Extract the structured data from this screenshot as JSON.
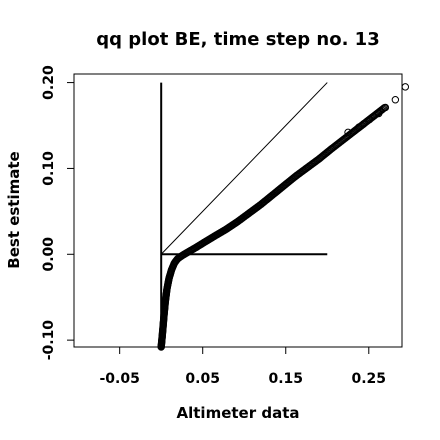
{
  "chart_data": {
    "type": "scatter",
    "title": "qq plot BE, time step no. 13",
    "xlabel": "Altimeter data",
    "ylabel": "Best estimate",
    "xlim": [
      -0.105,
      0.29
    ],
    "ylim": [
      -0.108,
      0.21
    ],
    "x_ticks": [
      -0.05,
      0.05,
      0.15,
      0.25
    ],
    "x_tick_labels": [
      "-0.05",
      "0.05",
      "0.15",
      "0.25"
    ],
    "y_ticks": [
      -0.1,
      0.0,
      0.1,
      0.2
    ],
    "y_tick_labels": [
      "-0.10",
      "0.00",
      "0.10",
      "0.20"
    ],
    "grid": false,
    "reference_lines": [
      {
        "name": "diagonal",
        "x": [
          0.0,
          0.2
        ],
        "y": [
          0.0,
          0.2
        ]
      },
      {
        "name": "vertical",
        "x": [
          0.0,
          0.0
        ],
        "y": [
          -0.11,
          0.2
        ]
      },
      {
        "name": "horizontal",
        "x": [
          0.0,
          0.2
        ],
        "y": [
          0.0,
          0.0
        ]
      }
    ],
    "quantile_curve": [
      [
        0.0,
        -0.108
      ],
      [
        0.001,
        -0.098
      ],
      [
        0.0022,
        -0.085
      ],
      [
        0.0035,
        -0.07
      ],
      [
        0.005,
        -0.055
      ],
      [
        0.007,
        -0.04
      ],
      [
        0.0095,
        -0.028
      ],
      [
        0.0125,
        -0.018
      ],
      [
        0.016,
        -0.01
      ],
      [
        0.02,
        -0.005
      ],
      [
        0.026,
        -0.001
      ],
      [
        0.033,
        0.003
      ],
      [
        0.042,
        0.008
      ],
      [
        0.052,
        0.014
      ],
      [
        0.064,
        0.021
      ],
      [
        0.078,
        0.029
      ],
      [
        0.092,
        0.038
      ],
      [
        0.106,
        0.048
      ],
      [
        0.12,
        0.058
      ],
      [
        0.134,
        0.069
      ],
      [
        0.148,
        0.08
      ],
      [
        0.162,
        0.091
      ],
      [
        0.176,
        0.101
      ],
      [
        0.19,
        0.111
      ],
      [
        0.204,
        0.122
      ],
      [
        0.22,
        0.134
      ],
      [
        0.236,
        0.146
      ],
      [
        0.252,
        0.158
      ],
      [
        0.268,
        0.17
      ],
      [
        0.282,
        0.181
      ],
      [
        0.29,
        0.193
      ]
    ],
    "n_points": 320,
    "tail_points": [
      {
        "x": 0.225,
        "y": 0.142
      },
      {
        "x": 0.238,
        "y": 0.148
      },
      {
        "x": 0.244,
        "y": 0.152
      },
      {
        "x": 0.251,
        "y": 0.157
      },
      {
        "x": 0.262,
        "y": 0.164
      },
      {
        "x": 0.27,
        "y": 0.171
      },
      {
        "x": 0.282,
        "y": 0.18
      },
      {
        "x": 0.294,
        "y": 0.195
      }
    ]
  }
}
